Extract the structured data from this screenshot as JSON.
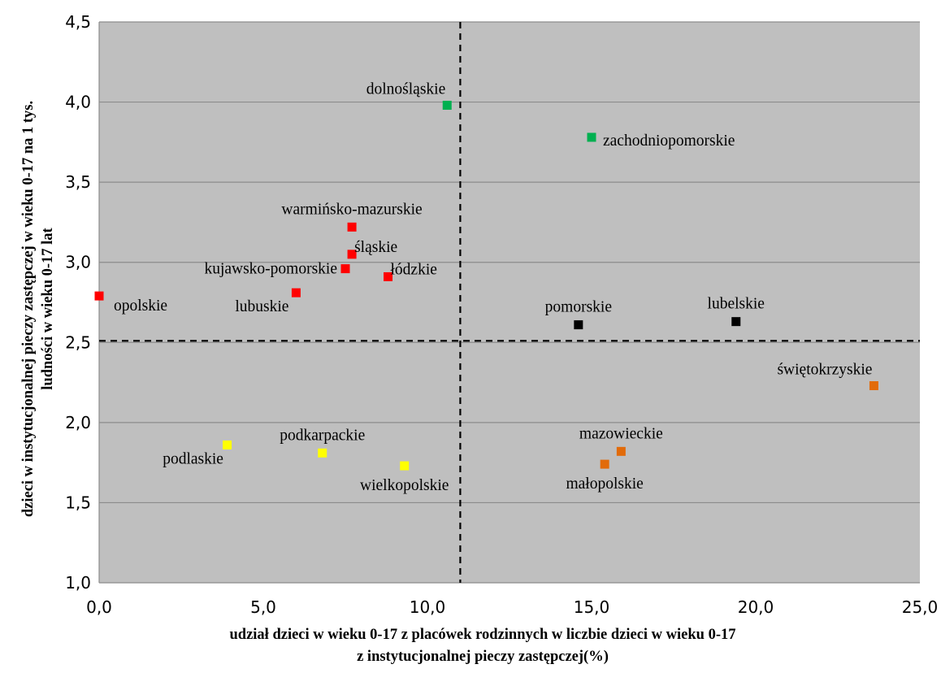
{
  "chart_data": {
    "type": "scatter",
    "xlabel": [
      "udział dzieci  w wieku 0-17 z placówek rodzinnych w liczbie dzieci  w wieku 0-17",
      "z instytucjonalnej pieczy zastępczej(%)"
    ],
    "ylabel": [
      "dzieci w instytucjonalnej  pieczy zastępczej w wieku 0-17 na 1 tys.",
      "ludności w wieku 0-17 lat"
    ],
    "xlim": [
      0,
      25
    ],
    "ylim": [
      1.0,
      4.5
    ],
    "x_ticks": [
      0,
      5,
      10,
      15,
      20,
      25
    ],
    "x_tick_labels": [
      "0,0",
      "5,0",
      "10,0",
      "15,0",
      "20,0",
      "25,0"
    ],
    "y_ticks": [
      1.0,
      1.5,
      2.0,
      2.5,
      3.0,
      3.5,
      4.0,
      4.5
    ],
    "y_tick_labels": [
      "1,0",
      "1,5",
      "2,0",
      "2,5",
      "3,0",
      "3,5",
      "4,0",
      "4,5"
    ],
    "grid": "horizontal",
    "background_color": "#bfbfbf",
    "grid_color": "#8c8c8c",
    "reference_lines": {
      "x": 11.0,
      "y": 2.51,
      "style": "dashed"
    },
    "colors": {
      "green": "#00b050",
      "red": "#ff0000",
      "black": "#000000",
      "orange": "#e26b0a",
      "yellow": "#ffff00"
    },
    "points": [
      {
        "label": "dolnośląskie",
        "x": 10.6,
        "y": 3.98,
        "color": "green",
        "label_pos": "above-left"
      },
      {
        "label": "zachodniopomorskie",
        "x": 15.0,
        "y": 3.78,
        "color": "green",
        "label_pos": "right"
      },
      {
        "label": "warmińsko-mazurskie",
        "x": 7.7,
        "y": 3.22,
        "color": "red",
        "label_pos": "above"
      },
      {
        "label": "śląskie",
        "x": 7.7,
        "y": 3.05,
        "color": "red",
        "label_pos": "above-right"
      },
      {
        "label": "kujawsko-pomorskie",
        "x": 7.5,
        "y": 2.96,
        "color": "red",
        "label_pos": "left"
      },
      {
        "label": "łódzkie",
        "x": 8.8,
        "y": 2.91,
        "color": "red",
        "label_pos": "above-right"
      },
      {
        "label": "lubuskie",
        "x": 6.0,
        "y": 2.81,
        "color": "red",
        "label_pos": "below-left"
      },
      {
        "label": "opolskie",
        "x": 0.0,
        "y": 2.79,
        "color": "red",
        "label_pos": "below-right"
      },
      {
        "label": "pomorskie",
        "x": 14.6,
        "y": 2.61,
        "color": "black",
        "label_pos": "above"
      },
      {
        "label": "lubelskie",
        "x": 19.4,
        "y": 2.63,
        "color": "black",
        "label_pos": "above"
      },
      {
        "label": "świętokrzyskie",
        "x": 23.6,
        "y": 2.23,
        "color": "orange",
        "label_pos": "above-left"
      },
      {
        "label": "mazowieckie",
        "x": 15.9,
        "y": 1.82,
        "color": "orange",
        "label_pos": "above"
      },
      {
        "label": "małopolskie",
        "x": 15.4,
        "y": 1.74,
        "color": "orange",
        "label_pos": "below"
      },
      {
        "label": "podlaskie",
        "x": 3.9,
        "y": 1.86,
        "color": "yellow",
        "label_pos": "below-left"
      },
      {
        "label": "podkarpackie",
        "x": 6.8,
        "y": 1.81,
        "color": "yellow",
        "label_pos": "above"
      },
      {
        "label": "wielkopolskie",
        "x": 9.3,
        "y": 1.73,
        "color": "yellow",
        "label_pos": "below"
      }
    ]
  }
}
